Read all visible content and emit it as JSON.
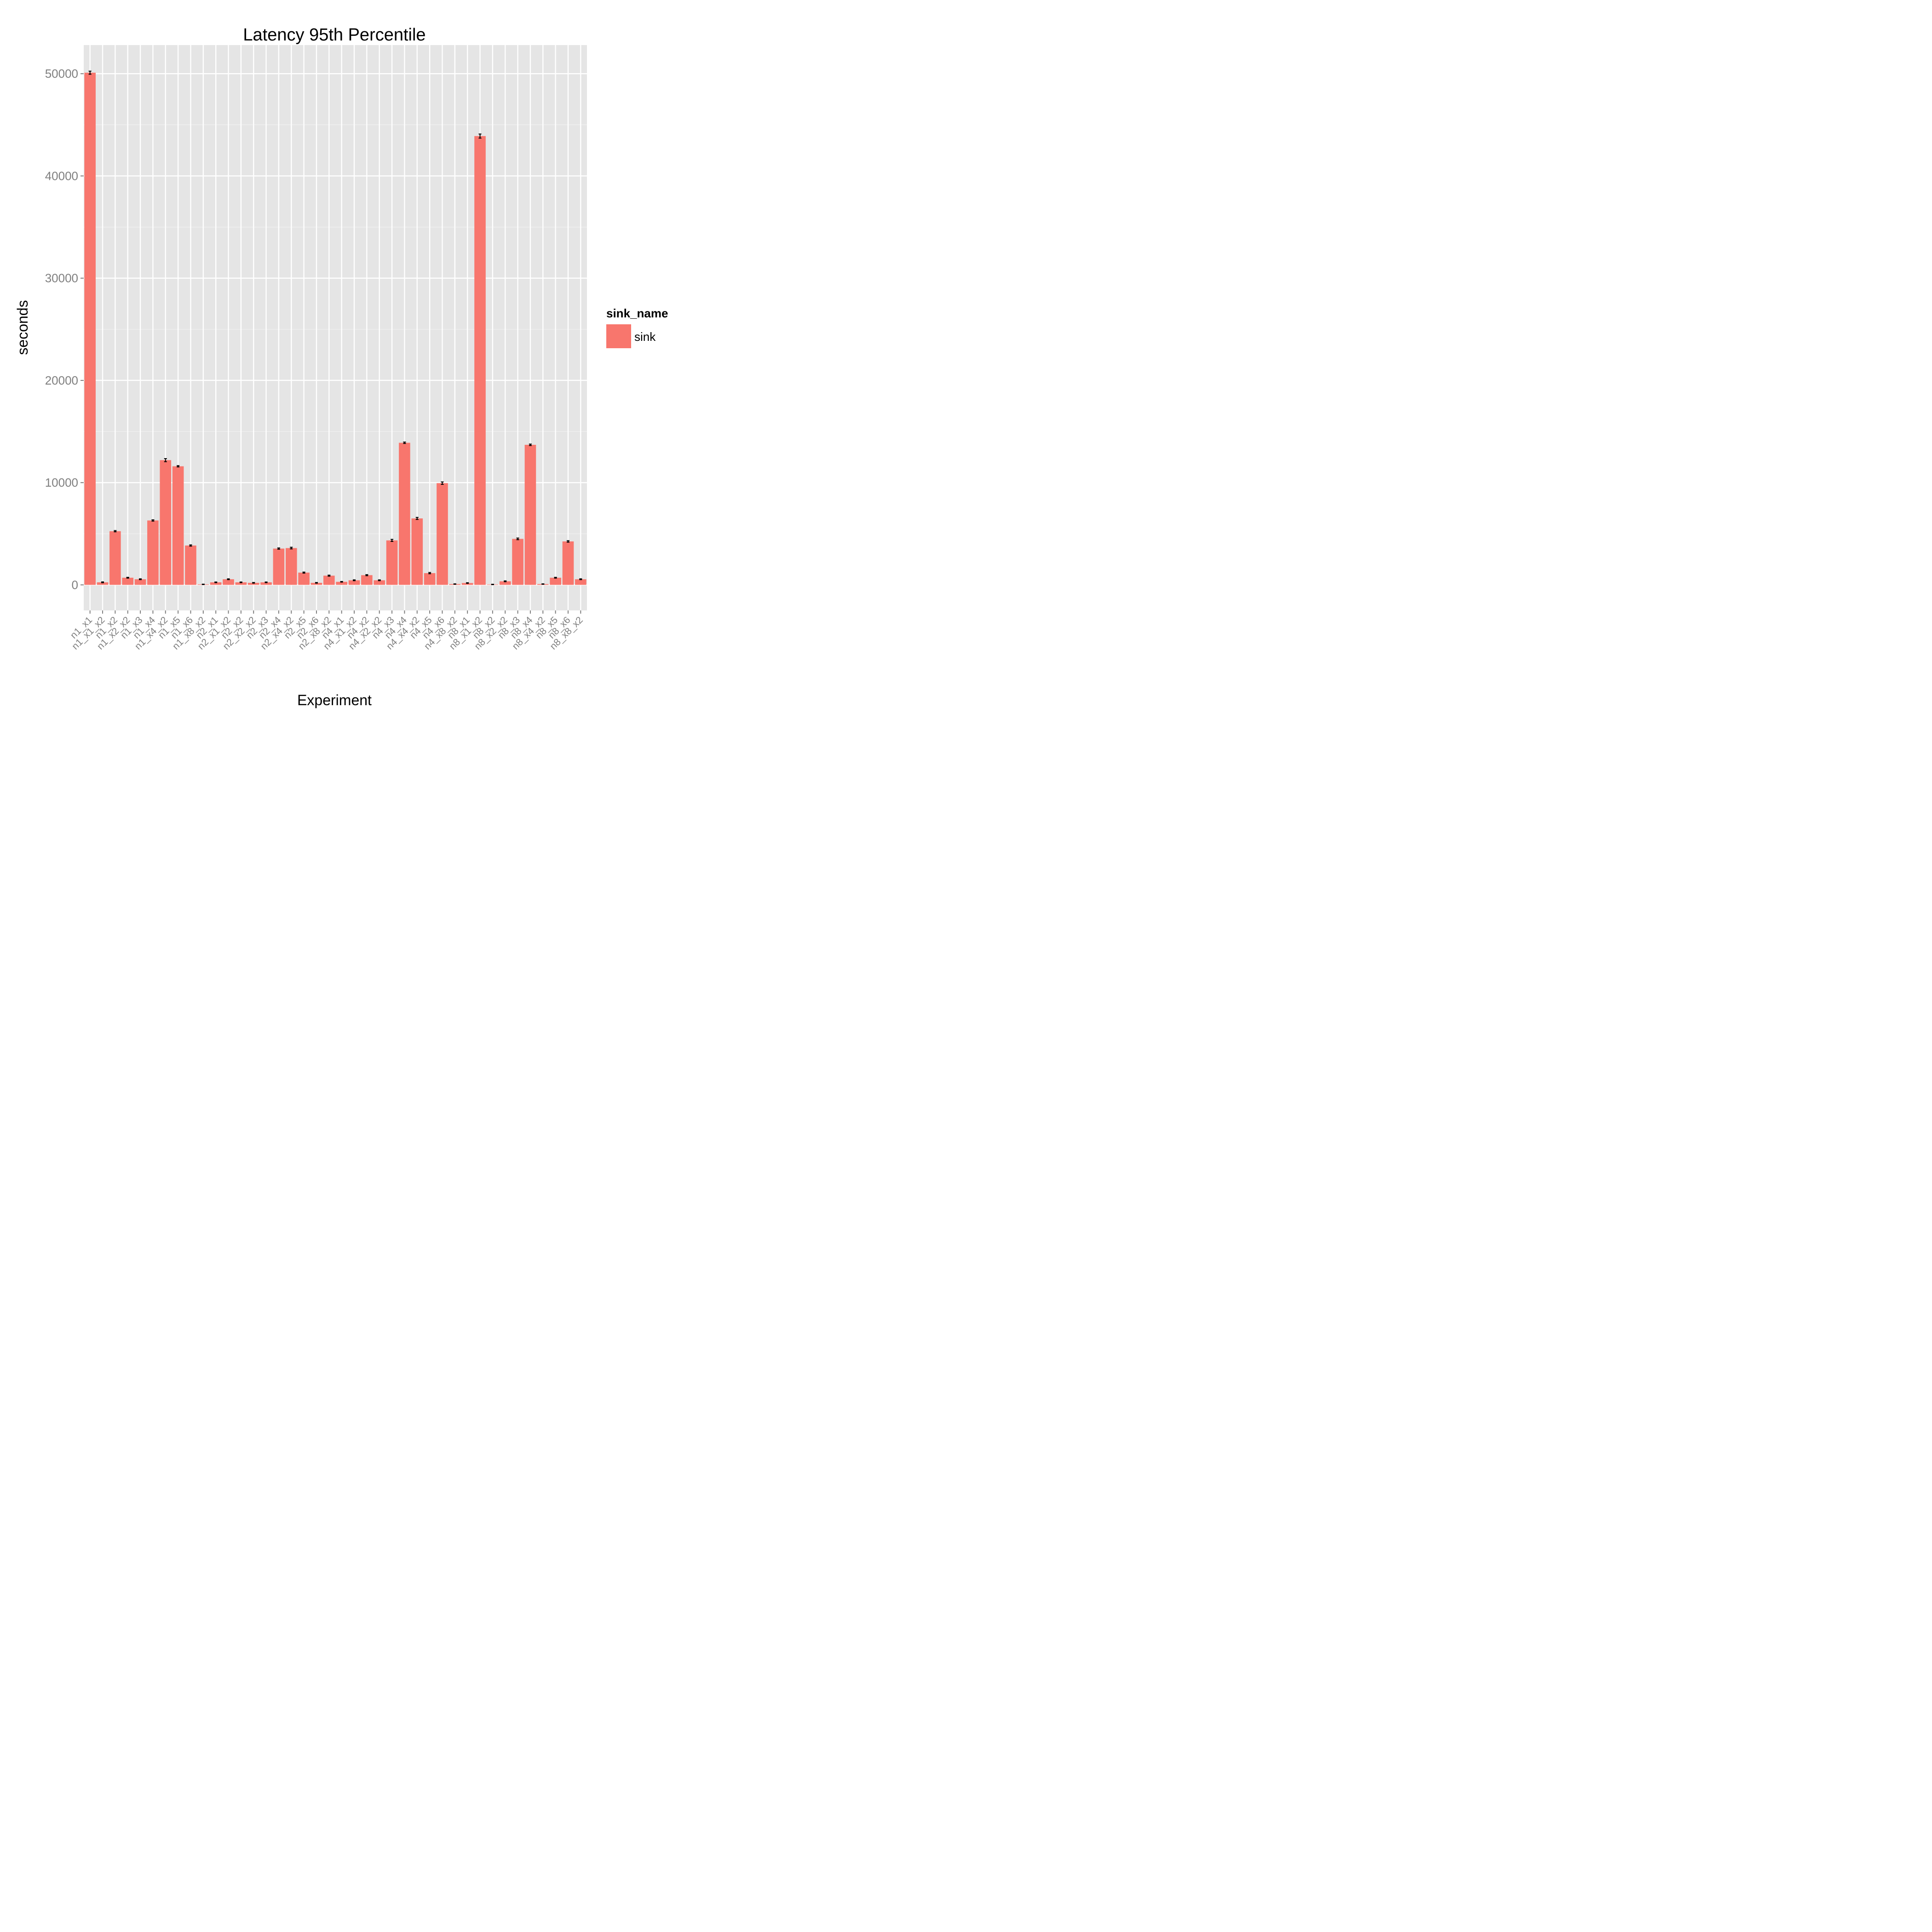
{
  "chart_data": {
    "type": "bar",
    "title": "Latency 95th Percentile",
    "xlabel": "Experiment",
    "ylabel": "seconds",
    "ylim": [
      -2500,
      52800
    ],
    "yticks": [
      0,
      10000,
      20000,
      30000,
      40000,
      50000
    ],
    "grid": true,
    "legend": {
      "title": "sink_name",
      "placement": "right",
      "entries": [
        {
          "name": "sink",
          "color": "#F8766D"
        }
      ]
    },
    "bar_color": "#F8766D",
    "panel_color": "#E5E5E5",
    "categories": [
      "n1_x1",
      "n1_x1_x2",
      "n1_x2",
      "n1_x2_x2",
      "n1_x3",
      "n1_x4",
      "n1_x4_x2",
      "n1_x5",
      "n1_x6",
      "n1_x8_x2",
      "n2_x1",
      "n2_x1_x2",
      "n2_x2",
      "n2_x2_x2",
      "n2_x3",
      "n2_x4",
      "n2_x4_x2",
      "n2_x5",
      "n2_x6",
      "n2_x8_x2",
      "n4_x1",
      "n4_x1_x2",
      "n4_x2",
      "n4_x2_x2",
      "n4_x3",
      "n4_x4",
      "n4_x4_x2",
      "n4_x5",
      "n4_x6",
      "n4_x8_x2",
      "n8_x1",
      "n8_x1_x2",
      "n8_x2",
      "n8_x2_x2",
      "n8_x3",
      "n8_x4",
      "n8_x4_x2",
      "n8_x5",
      "n8_x6",
      "n8_x8_x2"
    ],
    "series": [
      {
        "name": "sink",
        "values": [
          50100,
          250,
          5250,
          700,
          550,
          6300,
          12200,
          11600,
          3850,
          50,
          250,
          550,
          250,
          200,
          250,
          3550,
          3600,
          1200,
          200,
          900,
          300,
          450,
          950,
          450,
          4350,
          13900,
          6500,
          1150,
          9950,
          80,
          180,
          43900,
          40,
          350,
          4500,
          13700,
          80,
          700,
          4250,
          550
        ],
        "errors": [
          150,
          40,
          60,
          40,
          40,
          60,
          150,
          60,
          60,
          20,
          30,
          40,
          30,
          30,
          30,
          60,
          80,
          50,
          30,
          50,
          30,
          40,
          50,
          40,
          100,
          70,
          100,
          60,
          120,
          20,
          30,
          200,
          20,
          40,
          80,
          70,
          20,
          40,
          70,
          40
        ]
      }
    ]
  }
}
